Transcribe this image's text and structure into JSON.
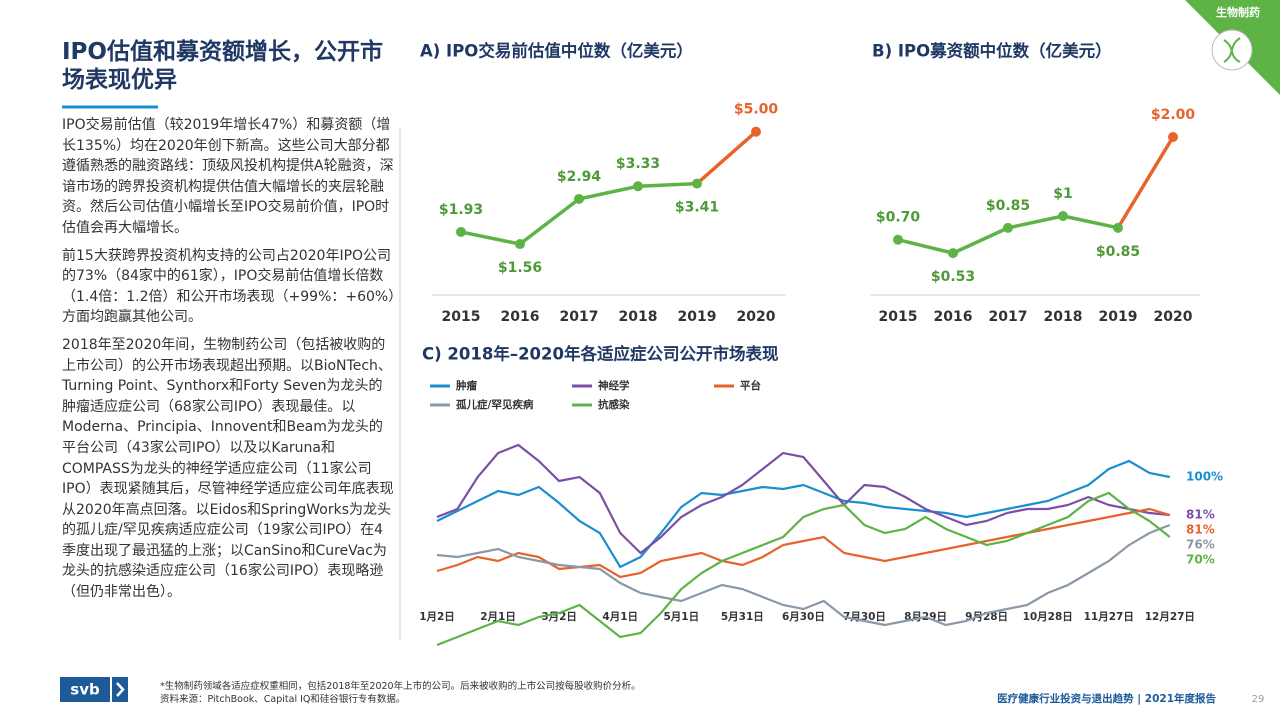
{
  "page": {
    "title": "IPO估值和募资额增长，公开市场表现优异",
    "paragraphs": [
      "IPO交易前估值（较2019年增长47%）和募资额（增长135%）均在2020年创下新高。这些公司大部分都遵循熟悉的融资路线：顶级风投机构提供A轮融资，深谙市场的跨界投资机构提供估值大幅增长的夹层轮融资。然后公司估值小幅增长至IPO交易前价值，IPO时估值会再大幅增长。",
      "前15大获跨界投资机构支持的公司占2020年IPO公司的73%（84家中的61家），IPO交易前估值增长倍数（1.4倍：1.2倍）和公开市场表现（+99%：+60%）方面均跑赢其他公司。",
      "2018年至2020年间，生物制药公司（包括被收购的上市公司）的公开市场表现超出预期。以BioNTech、Turning Point、Synthorx和Forty Seven为龙头的肿瘤适应症公司（68家公司IPO）表现最佳。以Moderna、Principia、Innovent和Beam为龙头的平台公司（43家公司IPO）以及以Karuna和COMPASS为龙头的神经学适应症公司（11家公司IPO）表现紧随其后，尽管神经学适应症公司年底表现从2020年高点回落。以Eidos和SpringWorks为龙头的孤儿症/罕见疾病适应症公司（19家公司IPO）在4季度出现了最迅猛的上涨；以CanSino和CureVac为龙头的抗感染适应症公司（16家公司IPO）表现略逊（但仍非常出色）。"
    ],
    "badge": "生物制药",
    "notes": [
      "*生物制药领域各适应症权重相同，包括2018年至2020年上市的公司。后来被收购的上市公司按每股收购价分析。",
      "资料来源：PitchBook、Capital IQ和硅谷银行专有数据。"
    ],
    "logo": "svb",
    "footer": "医疗健康行业投资与退出趋势 | 2021年度报告",
    "page_number": "29"
  },
  "chart_data": [
    {
      "type": "line",
      "title": "A) IPO交易前估值中位数（亿美元）",
      "categories": [
        "2015",
        "2016",
        "2017",
        "2018",
        "2019",
        "2020"
      ],
      "values": [
        1.93,
        1.56,
        2.94,
        3.33,
        3.41,
        5.0
      ],
      "value_labels": [
        "$1.93",
        "$1.56",
        "$2.94",
        "$3.33",
        "$3.41",
        "$5.00"
      ],
      "color": "#5db346",
      "highlight_color": "#e8622b",
      "ylim": [
        0,
        6
      ]
    },
    {
      "type": "line",
      "title": "B) IPO募资额中位数（亿美元）",
      "categories": [
        "2015",
        "2016",
        "2017",
        "2018",
        "2019",
        "2020"
      ],
      "values": [
        0.7,
        0.53,
        0.85,
        1,
        0.85,
        2.0
      ],
      "value_labels": [
        "$0.70",
        "$0.53",
        "$0.85",
        "$1",
        "$0.85",
        "$2.00"
      ],
      "color": "#5db346",
      "highlight_color": "#e8622b",
      "ylim": [
        0,
        2.5
      ]
    },
    {
      "type": "line",
      "title": "C) 2018年–2020年各适应症公司公开市场表现",
      "x": [
        0,
        10,
        20,
        30,
        40,
        50,
        60,
        70,
        80,
        90,
        100,
        110,
        120,
        130,
        140,
        150,
        160,
        170,
        180,
        190,
        200,
        210,
        220,
        230,
        240,
        250,
        260,
        270,
        280,
        290,
        300,
        310,
        320,
        330,
        340,
        350,
        360
      ],
      "xlim": [
        0,
        365
      ],
      "ylim": [
        10,
        120
      ],
      "xticks": [
        {
          "value": 0,
          "label": "1月2日"
        },
        {
          "value": 30,
          "label": "2月1日"
        },
        {
          "value": 60,
          "label": "3月2日"
        },
        {
          "value": 90,
          "label": "4月1日"
        },
        {
          "value": 120,
          "label": "5月1日"
        },
        {
          "value": 150,
          "label": "5月31日"
        },
        {
          "value": 180,
          "label": "6月30日"
        },
        {
          "value": 210,
          "label": "7月30日"
        },
        {
          "value": 240,
          "label": "8月29日"
        },
        {
          "value": 270,
          "label": "9月28日"
        },
        {
          "value": 300,
          "label": "10月28日"
        },
        {
          "value": 330,
          "label": "11月27日"
        },
        {
          "value": 360,
          "label": "12月27日"
        }
      ],
      "series": [
        {
          "name": "肿瘤",
          "color": "#1a8fd0",
          "end_label": "100%",
          "values": [
            78,
            83,
            88,
            93,
            91,
            95,
            87,
            78,
            72,
            55,
            60,
            72,
            85,
            92,
            91,
            93,
            95,
            94,
            96,
            92,
            88,
            87,
            85,
            84,
            83,
            82,
            80,
            82,
            84,
            86,
            88,
            92,
            96,
            104,
            108,
            102,
            100
          ]
        },
        {
          "name": "神经学",
          "color": "#7b4fa6",
          "end_label": "81%",
          "values": [
            80,
            84,
            100,
            112,
            116,
            108,
            98,
            100,
            92,
            72,
            62,
            70,
            80,
            86,
            90,
            96,
            104,
            112,
            110,
            98,
            86,
            96,
            95,
            90,
            84,
            80,
            76,
            78,
            82,
            84,
            84,
            86,
            90,
            86,
            84,
            82,
            81
          ]
        },
        {
          "name": "平台",
          "color": "#e8622b",
          "end_label": "81%",
          "values": [
            53,
            56,
            60,
            58,
            62,
            60,
            54,
            55,
            56,
            50,
            52,
            58,
            60,
            62,
            58,
            56,
            60,
            66,
            68,
            70,
            62,
            60,
            58,
            60,
            62,
            64,
            66,
            68,
            70,
            72,
            74,
            76,
            78,
            80,
            82,
            84,
            81
          ]
        },
        {
          "name": "孤儿症/罕见疾病",
          "color": "#8a98a8",
          "end_label": "76%",
          "values": [
            61,
            60,
            62,
            64,
            60,
            58,
            56,
            55,
            54,
            47,
            42,
            40,
            38,
            42,
            46,
            44,
            40,
            36,
            34,
            38,
            30,
            28,
            26,
            28,
            30,
            26,
            28,
            32,
            34,
            36,
            42,
            46,
            52,
            58,
            66,
            72,
            76
          ]
        },
        {
          "name": "抗感染",
          "color": "#5db346",
          "end_label": "70%",
          "values": [
            16,
            20,
            24,
            28,
            26,
            30,
            32,
            36,
            28,
            20,
            22,
            32,
            44,
            52,
            58,
            62,
            66,
            70,
            80,
            84,
            86,
            76,
            72,
            74,
            80,
            74,
            70,
            66,
            68,
            72,
            76,
            80,
            88,
            92,
            84,
            78,
            70
          ]
        }
      ]
    }
  ]
}
